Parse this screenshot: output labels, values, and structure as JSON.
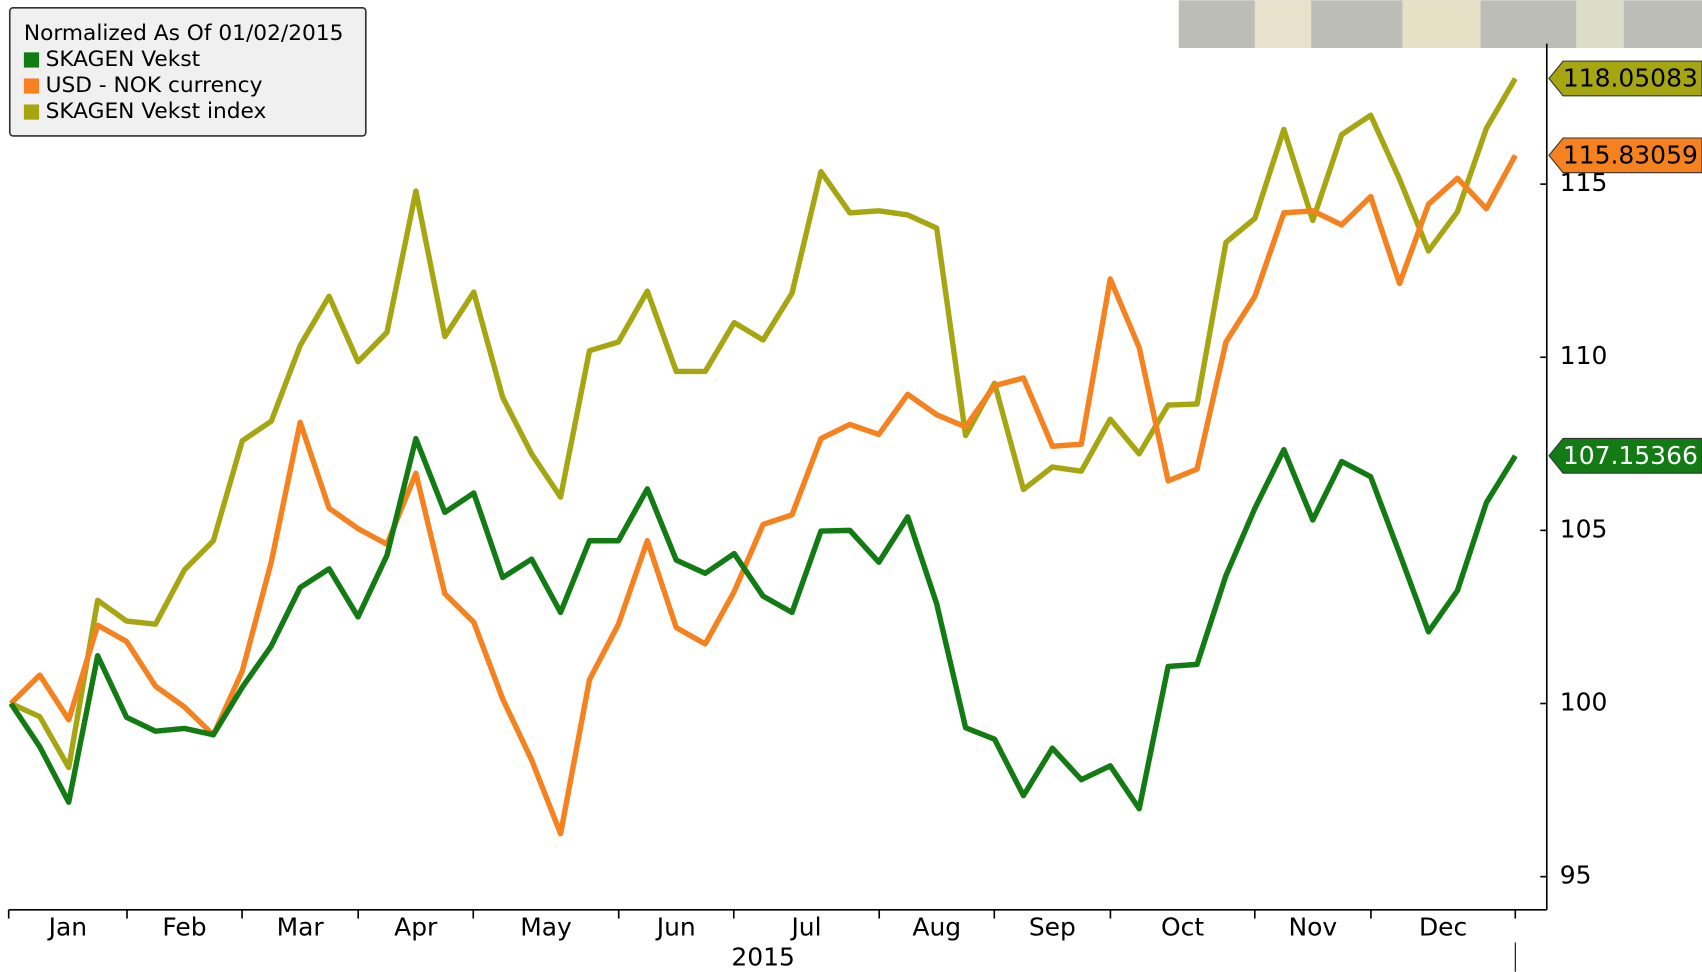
{
  "chart_data": {
    "type": "line",
    "legend_title": "Normalized As Of 01/02/2015",
    "xlabel": "2015",
    "xticks": [
      "Jan",
      "Feb",
      "Mar",
      "Apr",
      "May",
      "Jun",
      "Jul",
      "Aug",
      "Sep",
      "Oct",
      "Nov",
      "Dec"
    ],
    "ylim": [
      94.04,
      120.31
    ],
    "yticks": [
      95,
      100,
      105,
      110,
      115
    ],
    "series": [
      {
        "name": "SKAGEN Vekst",
        "color": "#137b13",
        "values": [
          100,
          98.75,
          97.15,
          101.38,
          99.6,
          99.2,
          99.28,
          99.1,
          100.47,
          101.66,
          103.35,
          103.89,
          102.5,
          104.28,
          107.65,
          105.52,
          106.08,
          103.64,
          104.17,
          102.63,
          104.7,
          104.7,
          106.2,
          104.14,
          103.76,
          104.33,
          103.1,
          102.63,
          104.98,
          105.0,
          104.08,
          105.39,
          102.88,
          99.3,
          98.97,
          97.34,
          98.71,
          97.8,
          98.2,
          96.96,
          101.07,
          101.13,
          103.7,
          105.64,
          107.33,
          105.3,
          106.99,
          106.55,
          104.33,
          102.07,
          103.26,
          105.8,
          107.15366
        ]
      },
      {
        "name": "USD - NOK currency",
        "color": "#f5821f",
        "values": [
          100,
          100.82,
          99.53,
          102.26,
          101.79,
          100.5,
          99.9,
          99.09,
          100.94,
          104.08,
          108.12,
          105.64,
          105.05,
          104.6,
          106.65,
          103.17,
          102.35,
          100.13,
          98.37,
          96.24,
          100.69,
          102.29,
          104.7,
          102.19,
          101.72,
          103.23,
          105.17,
          105.45,
          107.65,
          108.06,
          107.77,
          108.93,
          108.34,
          107.99,
          109.18,
          109.4,
          107.43,
          107.49,
          112.26,
          110.28,
          106.43,
          106.77,
          110.44,
          111.76,
          114.17,
          114.23,
          113.82,
          114.64,
          112.13,
          114.42,
          115.17,
          114.29,
          115.83059
        ]
      },
      {
        "name": "SKAGEN Vekst index",
        "color": "#a6a613",
        "values": [
          100,
          99.62,
          98.15,
          102.98,
          102.38,
          102.29,
          103.86,
          104.7,
          107.59,
          108.15,
          110.34,
          111.76,
          109.87,
          110.72,
          114.8,
          110.6,
          111.88,
          108.84,
          107.21,
          105.96,
          110.19,
          110.44,
          111.91,
          109.59,
          109.59,
          111.0,
          110.5,
          111.85,
          115.36,
          114.17,
          114.23,
          114.11,
          113.73,
          107.74,
          109.25,
          106.18,
          106.83,
          106.71,
          108.21,
          107.21,
          108.62,
          108.65,
          113.32,
          114.01,
          116.58,
          113.95,
          116.43,
          116.99,
          115.14,
          113.07,
          114.2,
          116.61,
          118.05083
        ]
      }
    ]
  }
}
